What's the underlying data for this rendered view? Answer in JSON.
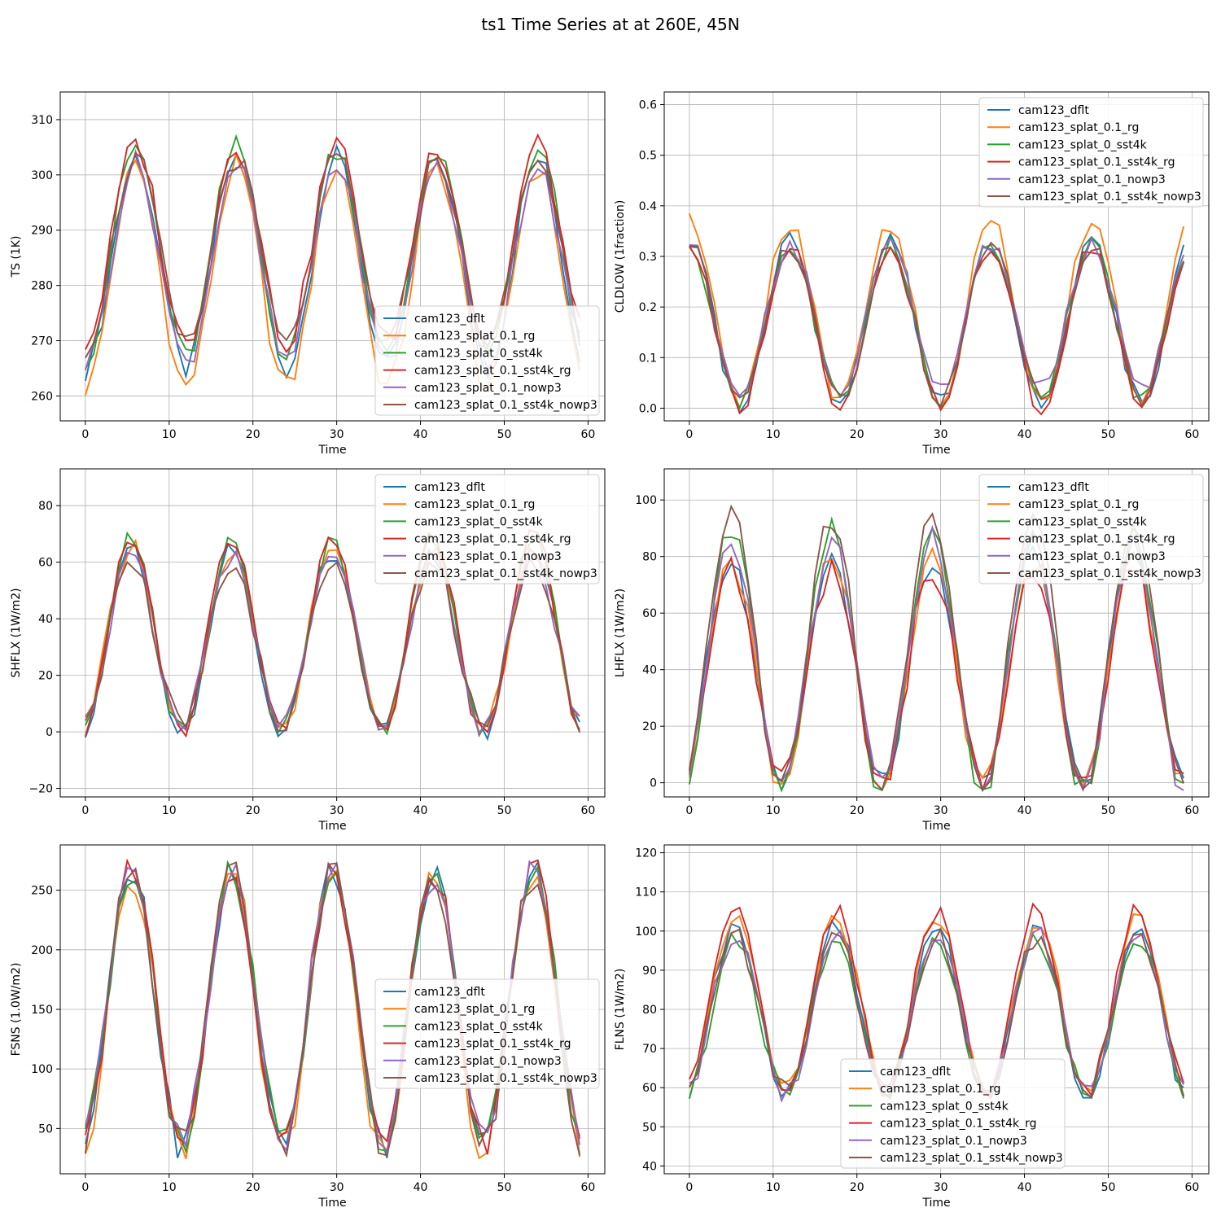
{
  "figure": {
    "title": "ts1 Time Series at at 260E, 45N"
  },
  "series_names": [
    "cam123_dflt",
    "cam123_splat_0.1_rg",
    "cam123_splat_0_sst4k",
    "cam123_splat_0.1_sst4k_rg",
    "cam123_splat_0.1_nowp3",
    "cam123_splat_0.1_sst4k_nowp3"
  ],
  "series_colors": [
    "#1f77b4",
    "#ff7f0e",
    "#2ca02c",
    "#d62728",
    "#9467bd",
    "#8c564b"
  ],
  "chart_data": [
    {
      "type": "line",
      "title": "",
      "xlabel": "Time",
      "ylabel": "TS (1K)",
      "xlim": [
        -3,
        62
      ],
      "ylim": [
        255.5,
        315
      ],
      "xticks": [
        0,
        10,
        20,
        30,
        40,
        50,
        60
      ],
      "yticks": [
        260,
        270,
        280,
        290,
        300,
        310
      ],
      "ytick_labels": [
        "260",
        "270",
        "280",
        "290",
        "300",
        "310"
      ],
      "grid": true,
      "legend": "lower-right",
      "phase": 6,
      "amplitude": 19,
      "mean": 284,
      "series_meta": [
        {
          "shift": 0,
          "amp": 1.0
        },
        {
          "shift": -2.5,
          "amp": 1.05
        },
        {
          "shift": 2,
          "amp": 1.0
        },
        {
          "shift": 3.5,
          "amp": 0.95
        },
        {
          "shift": 0,
          "amp": 0.95
        },
        {
          "shift": 2,
          "amp": 0.9
        }
      ]
    },
    {
      "type": "line",
      "title": "",
      "xlabel": "Time",
      "ylabel": "CLDLOW (1fraction)",
      "xlim": [
        -3,
        62
      ],
      "ylim": [
        -0.025,
        0.625
      ],
      "xticks": [
        0,
        10,
        20,
        30,
        40,
        50,
        60
      ],
      "yticks": [
        0.0,
        0.1,
        0.2,
        0.3,
        0.4,
        0.5,
        0.6
      ],
      "ytick_labels": [
        "0.0",
        "0.1",
        "0.2",
        "0.3",
        "0.4",
        "0.5",
        "0.6"
      ],
      "grid": true,
      "legend": "top-right",
      "phase": 0,
      "amplitude": 0.16,
      "mean": 0.17,
      "series_meta": [
        {
          "shift": 0,
          "amp": 1.0
        },
        {
          "shift": 0.02,
          "amp": 1.1
        },
        {
          "shift": 0,
          "amp": 0.95
        },
        {
          "shift": -0.01,
          "amp": 1.0
        },
        {
          "shift": 0.01,
          "amp": 0.9
        },
        {
          "shift": 0,
          "amp": 0.95
        }
      ]
    },
    {
      "type": "line",
      "title": "",
      "xlabel": "Time",
      "ylabel": "SHFLX (1W/m2)",
      "xlim": [
        -3,
        62
      ],
      "ylim": [
        -23,
        93
      ],
      "xticks": [
        0,
        10,
        20,
        30,
        40,
        50,
        60
      ],
      "yticks": [
        -20,
        0,
        20,
        40,
        60,
        80
      ],
      "ytick_labels": [
        "−20",
        "0",
        "20",
        "40",
        "60",
        "80"
      ],
      "grid": true,
      "legend": "top-right",
      "phase": 5.5,
      "amplitude": 32,
      "mean": 32,
      "series_meta": [
        {
          "shift": 0,
          "amp": 1.0
        },
        {
          "shift": 1,
          "amp": 1.0
        },
        {
          "shift": 2,
          "amp": 1.05
        },
        {
          "shift": 3,
          "amp": 1.1
        },
        {
          "shift": 0,
          "amp": 0.95
        },
        {
          "shift": -1,
          "amp": 0.9
        }
      ]
    },
    {
      "type": "line",
      "title": "",
      "xlabel": "Time",
      "ylabel": "LHFLX (1W/m2)",
      "xlim": [
        -3,
        62
      ],
      "ylim": [
        -5,
        111
      ],
      "xticks": [
        0,
        10,
        20,
        30,
        40,
        50,
        60
      ],
      "yticks": [
        0,
        20,
        40,
        60,
        80,
        100
      ],
      "ytick_labels": [
        "0",
        "20",
        "40",
        "60",
        "80",
        "100"
      ],
      "grid": true,
      "legend": "top-right",
      "phase": 5,
      "amplitude": 40,
      "mean": 40,
      "series_meta": [
        {
          "shift": 0,
          "amp": 1.0
        },
        {
          "shift": -1,
          "amp": 1.0
        },
        {
          "shift": 3,
          "amp": 1.15
        },
        {
          "shift": -2,
          "amp": 0.95
        },
        {
          "shift": 2,
          "amp": 1.1
        },
        {
          "shift": 6,
          "amp": 1.2
        }
      ]
    },
    {
      "type": "line",
      "title": "",
      "xlabel": "Time",
      "ylabel": "FSNS (1.0W/m2)",
      "xlim": [
        -3,
        62
      ],
      "ylim": [
        12,
        288
      ],
      "xticks": [
        0,
        10,
        20,
        30,
        40,
        50,
        60
      ],
      "yticks": [
        50,
        100,
        150,
        200,
        250
      ],
      "ytick_labels": [
        "50",
        "100",
        "150",
        "200",
        "250"
      ],
      "grid": true,
      "legend": "center-right",
      "phase": 5.5,
      "amplitude": 115,
      "mean": 150,
      "series_meta": [
        {
          "shift": 0,
          "amp": 1.0
        },
        {
          "shift": -4,
          "amp": 1.02
        },
        {
          "shift": 2,
          "amp": 0.98
        },
        {
          "shift": 1,
          "amp": 1.0
        },
        {
          "shift": 3,
          "amp": 0.97
        },
        {
          "shift": 0,
          "amp": 0.99
        }
      ]
    },
    {
      "type": "line",
      "title": "",
      "xlabel": "Time",
      "ylabel": "FLNS (1W/m2)",
      "xlim": [
        -3,
        62
      ],
      "ylim": [
        38,
        122
      ],
      "xticks": [
        0,
        10,
        20,
        30,
        40,
        50,
        60
      ],
      "yticks": [
        40,
        50,
        60,
        70,
        80,
        90,
        100,
        110,
        120
      ],
      "ytick_labels": [
        "40",
        "50",
        "60",
        "70",
        "80",
        "90",
        "100",
        "110",
        "120"
      ],
      "grid": true,
      "legend": "lower-center",
      "phase": 5.5,
      "amplitude": 22,
      "mean": 80,
      "series_meta": [
        {
          "shift": 0,
          "amp": 1.0
        },
        {
          "shift": 1,
          "amp": 1.0
        },
        {
          "shift": -2,
          "amp": 0.9
        },
        {
          "shift": 2,
          "amp": 1.05
        },
        {
          "shift": -1,
          "amp": 0.95
        },
        {
          "shift": -1,
          "amp": 0.9
        }
      ]
    }
  ]
}
